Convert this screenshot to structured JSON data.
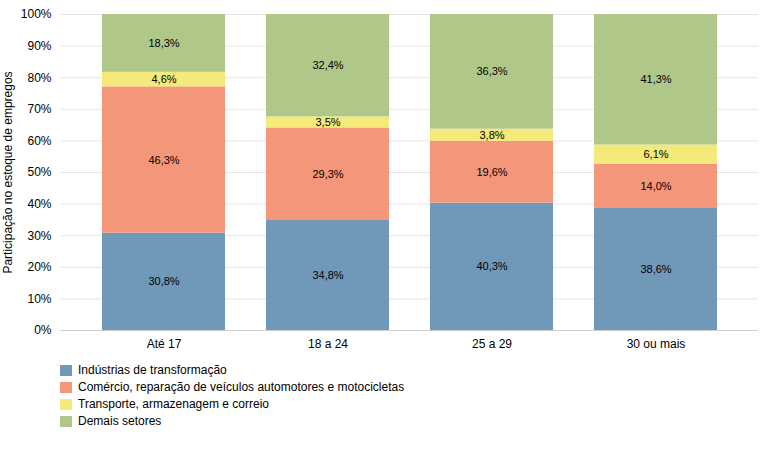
{
  "chart_data": {
    "type": "bar",
    "stacked": true,
    "data_labels": true,
    "grid": true,
    "legend": "bottom",
    "categories": [
      "Até 17",
      "18 a 24",
      "25 a 29",
      "30 ou mais"
    ],
    "ylabel": "Participação no estoque de empregos",
    "ylim": [
      0,
      100
    ],
    "yticks": [
      {
        "value": 0,
        "label": "0%"
      },
      {
        "value": 10,
        "label": "10%"
      },
      {
        "value": 20,
        "label": "20%"
      },
      {
        "value": 30,
        "label": "30%"
      },
      {
        "value": 40,
        "label": "40%"
      },
      {
        "value": 50,
        "label": "50%"
      },
      {
        "value": 60,
        "label": "60%"
      },
      {
        "value": 70,
        "label": "70%"
      },
      {
        "value": 80,
        "label": "80%"
      },
      {
        "value": 90,
        "label": "90%"
      },
      {
        "value": 100,
        "label": "100%"
      }
    ],
    "series": [
      {
        "name": "Indústrias de transformação",
        "color": "#7098b8",
        "values": [
          30.8,
          34.8,
          40.3,
          38.6
        ],
        "value_labels": [
          "30,8%",
          "34,8%",
          "40,3%",
          "38,6%"
        ]
      },
      {
        "name": "Comércio, reparação de veículos automotores e motocicletas",
        "color": "#f4967a",
        "values": [
          46.3,
          29.3,
          19.6,
          14.0
        ],
        "value_labels": [
          "46,3%",
          "29,3%",
          "19,6%",
          "14,0%"
        ]
      },
      {
        "name": "Transporte, armazenagem e correio",
        "color": "#f5e97a",
        "values": [
          4.6,
          3.5,
          3.8,
          6.1
        ],
        "value_labels": [
          "4,6%",
          "3,5%",
          "3,8%",
          "6,1%"
        ]
      },
      {
        "name": "Demais setores",
        "color": "#afc88a",
        "values": [
          18.3,
          32.4,
          36.3,
          41.3
        ],
        "value_labels": [
          "18,3%",
          "32,4%",
          "36,3%",
          "41,3%"
        ]
      }
    ]
  }
}
